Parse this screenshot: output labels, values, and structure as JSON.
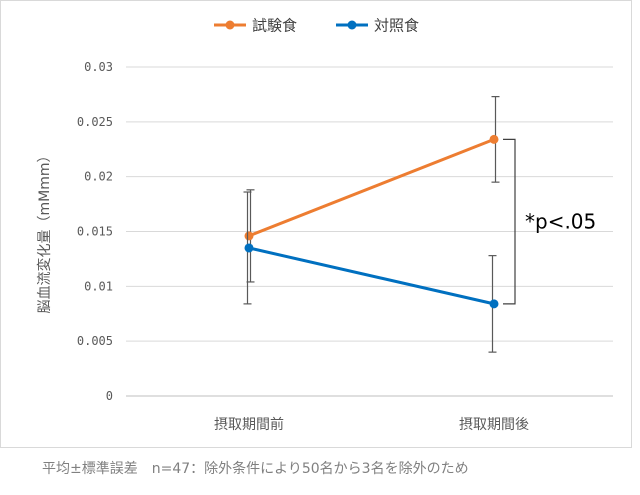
{
  "chart_data": {
    "type": "line",
    "title": "",
    "ylabel": "脳血流変化量（mMmm）",
    "xlabel": "",
    "categories": [
      "摂取期間前",
      "摂取期間後"
    ],
    "ylim": [
      0,
      0.03
    ],
    "yticks": [
      0,
      0.005,
      0.01,
      0.015,
      0.02,
      0.025,
      0.03
    ],
    "ytick_labels": [
      "0",
      "0.005",
      "0.01",
      "0.015",
      "0.02",
      "0.025",
      "0.03"
    ],
    "grid": true,
    "legend_position": "top-center",
    "series": [
      {
        "name": "試験食",
        "color": "#ED7D31",
        "values": [
          0.0146,
          0.0234
        ],
        "error": [
          0.0042,
          0.0039
        ]
      },
      {
        "name": "対照食",
        "color": "#0070C0",
        "values": [
          0.0135,
          0.0084
        ],
        "error": [
          0.0051,
          0.0044
        ]
      }
    ],
    "annotation": {
      "text": "*p<.05",
      "between_category": 1
    }
  },
  "footnote": "平均±標準誤差　n=47：除外条件により50名から3名を除外のため"
}
